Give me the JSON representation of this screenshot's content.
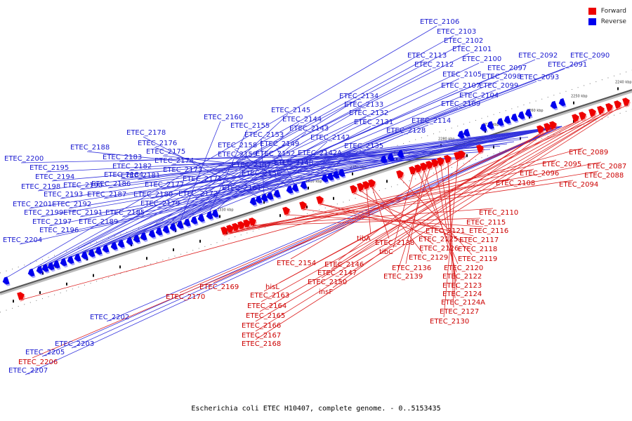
{
  "legend": {
    "forward": {
      "label": "Forward",
      "color": "#ee0000"
    },
    "reverse": {
      "label": "Reverse",
      "color": "#0000ee"
    }
  },
  "caption": "Escherichia coli ETEC H10407, complete genome. - 0..5153435",
  "axis": {
    "start_kbp": 2240,
    "end_kbp": 2370,
    "ticks": [
      "2240 kbp",
      "2250 kbp",
      "2260 kbp",
      "2270 kbp",
      "2280 kbp",
      "2290 kbp",
      "2300 kbp",
      "2310 kbp",
      "2320 kbp",
      "2330 kbp",
      "2340 kbp",
      "2350 kbp",
      "2360 kbp",
      "2370 kbp"
    ]
  },
  "reverse_labels": [
    "ETEC_2106",
    "ETEC_2103",
    "ETEC_2102",
    "ETEC_2101",
    "ETEC_2113",
    "ETEC_2100",
    "ETEC_2092",
    "ETEC_2090",
    "ETEC_2112",
    "ETEC_2097",
    "ETEC_2091",
    "ETEC_2105",
    "ETEC_2098",
    "ETEC_2093",
    "ETEC_2107",
    "ETEC_2099",
    "ETEC_2134",
    "ETEC_2104",
    "ETEC_2133",
    "ETEC_2109",
    "ETEC_2145",
    "ETEC_2132",
    "ETEC_2160",
    "ETEC_2144",
    "ETEC_2131",
    "ETEC_2114",
    "ETEC_2155",
    "ETEC_2143",
    "ETEC_2128",
    "ETEC_2178",
    "ETEC_2153",
    "ETEC_2142",
    "ETEC_2176",
    "ETEC_2158",
    "ETEC_2149",
    "ETEC_2135",
    "ETEC_2188",
    "ETEC_2175",
    "ETEC_2159",
    "ETEC_2152",
    "ETEC_2142A",
    "ETEC_2200",
    "ETEC_2183",
    "ETEC_2174",
    "ETEC_2157",
    "ETEC_2148",
    "ETEC_2195",
    "ETEC_2182",
    "ETEC_2173",
    "ETEC_2156",
    "ETEC_2194",
    "ETEC_2184",
    "ETEC_2181",
    "ETEC_2171",
    "ETEC_2198",
    "ETEC_2190",
    "ETEC_2186",
    "ETEC_2177",
    "ETEC_2161",
    "ETEC_2193",
    "ETEC_2187",
    "ETEC_2180",
    "ETEC_2172",
    "ETEC_2201",
    "ETEC_2192",
    "ETEC_2179",
    "ETEC_2199",
    "ETEC_2191",
    "ETEC_2185",
    "ETEC_2197",
    "ETEC_2189",
    "ETEC_2196",
    "ETEC_2204",
    "ETEC_2202",
    "ETEC_2203",
    "ETEC_2205",
    "ETEC_2207"
  ],
  "forward_labels": [
    "ETEC_2089",
    "ETEC_2087",
    "ETEC_2095",
    "ETEC_2096",
    "ETEC_2088",
    "ETEC_2094",
    "ETEC_2108",
    "ETEC_2110",
    "ETEC_2115",
    "ETEC_2116",
    "ETEC_2121",
    "ETEC_2117",
    "ETEC_2125",
    "ETEC_2118",
    "ETEC_2126",
    "tibA",
    "ETEC_2138",
    "ETEC_2129",
    "ETEC_2119",
    "tibC",
    "ETEC_2120",
    "ETEC_2136",
    "ETEC_2122",
    "ETEC_2139",
    "ETEC_2123",
    "ETEC_2124",
    "ETEC_2124A",
    "ETEC_2127",
    "ETEC_2130",
    "ETEC_2154",
    "ETEC_2146",
    "ETEC_2147",
    "ETEC_2150",
    "insF",
    "ETEC_2169",
    "hisL",
    "ETEC_2170",
    "ETEC_2163",
    "ETEC_2164",
    "ETEC_2165",
    "ETEC_2166",
    "ETEC_2167",
    "ETEC_2168",
    "ETEC_2206"
  ]
}
